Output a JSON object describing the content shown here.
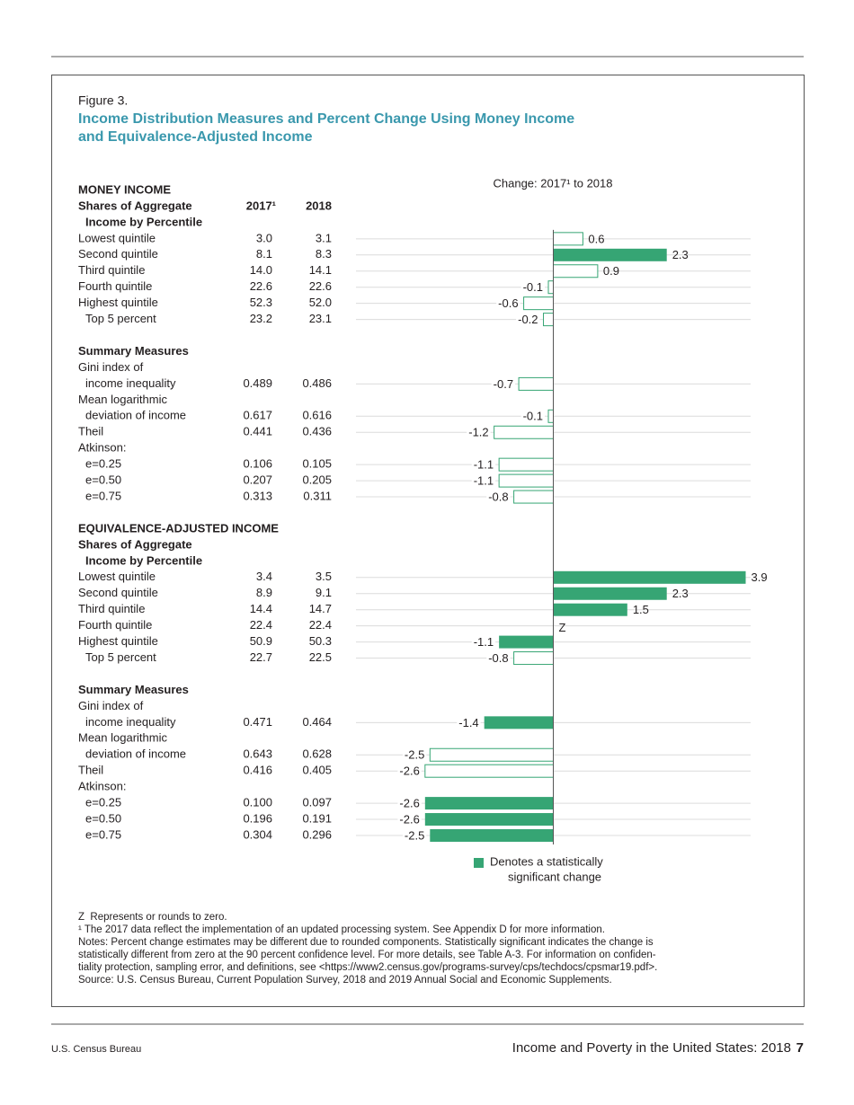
{
  "header": {
    "page_label": "Figure 3.",
    "title_lines": [
      "Income Distribution Measures and Percent Change Using Money Income",
      "and Equivalence-Adjusted Income"
    ],
    "title_color": "#3a98ad"
  },
  "table": {
    "columns": [
      "2017¹",
      "2018"
    ],
    "sections": [
      {
        "rows": [
          {
            "label": "MONEY INCOME",
            "bold": true
          },
          {
            "label": "Shares of Aggregate",
            "bold": true
          },
          {
            "label": "Income by Percentile",
            "bold": true,
            "indent": true
          },
          {
            "label": "Lowest quintile",
            "cells": [
              "3.0",
              "3.1"
            ]
          },
          {
            "label": "Second quintile",
            "cells": [
              "8.1",
              "8.3"
            ]
          },
          {
            "label": "Third quintile",
            "cells": [
              "14.0",
              "14.1"
            ]
          },
          {
            "label": "Fourth quintile",
            "cells": [
              "22.6",
              "22.6"
            ]
          },
          {
            "label": "Highest quintile",
            "cells": [
              "52.3",
              "52.0"
            ]
          },
          {
            "label": "Top 5 percent",
            "indent": true,
            "cells": [
              "23.2",
              "23.1"
            ]
          }
        ]
      },
      {
        "rows": [
          {
            "label": "Summary Measures",
            "bold": true
          },
          {
            "label": "Gini index of"
          },
          {
            "label": "income inequality",
            "indent": true,
            "cells": [
              "0.489",
              "0.486"
            ]
          },
          {
            "label": "Mean logarithmic"
          },
          {
            "label": "deviation of income",
            "indent": true,
            "cells": [
              "0.617",
              "0.616"
            ]
          },
          {
            "label": "Theil",
            "cells": [
              "0.441",
              "0.436"
            ]
          },
          {
            "label": "Atkinson:"
          },
          {
            "label": "e=0.25",
            "indent": true,
            "cells": [
              "0.106",
              "0.105"
            ]
          },
          {
            "label": "e=0.50",
            "indent": true,
            "cells": [
              "0.207",
              "0.205"
            ]
          },
          {
            "label": "e=0.75",
            "indent": true,
            "cells": [
              "0.313",
              "0.311"
            ]
          }
        ]
      },
      {
        "rows": [
          {
            "label": "EQUIVALENCE-ADJUSTED INCOME",
            "bold": true
          },
          {
            "label": "Shares of Aggregate",
            "bold": true
          },
          {
            "label": "Income by Percentile",
            "bold": true,
            "indent": true
          },
          {
            "label": "Lowest quintile",
            "cells": [
              "3.4",
              "3.5"
            ]
          },
          {
            "label": "Second quintile",
            "cells": [
              "8.9",
              "9.1"
            ]
          },
          {
            "label": "Third quintile",
            "cells": [
              "14.4",
              "14.7"
            ]
          },
          {
            "label": "Fourth quintile",
            "cells": [
              "22.4",
              "22.4"
            ]
          },
          {
            "label": "Highest quintile",
            "cells": [
              "50.9",
              "50.3"
            ]
          },
          {
            "label": "Top 5 percent",
            "indent": true,
            "cells": [
              "22.7",
              "22.5"
            ]
          }
        ]
      },
      {
        "rows": [
          {
            "label": "Summary Measures",
            "bold": true
          },
          {
            "label": "Gini index of"
          },
          {
            "label": "income inequality",
            "indent": true,
            "cells": [
              "0.471",
              "0.464"
            ]
          },
          {
            "label": "Mean logarithmic"
          },
          {
            "label": "deviation of income",
            "indent": true,
            "cells": [
              "0.643",
              "0.628"
            ]
          },
          {
            "label": "Theil",
            "cells": [
              "0.416",
              "0.405"
            ]
          },
          {
            "label": "Atkinson:"
          },
          {
            "label": "e=0.25",
            "indent": true,
            "cells": [
              "0.100",
              "0.097"
            ]
          },
          {
            "label": "e=0.50",
            "indent": true,
            "cells": [
              "0.196",
              "0.191"
            ]
          },
          {
            "label": "e=0.75",
            "indent": true,
            "cells": [
              "0.304",
              "0.296"
            ]
          }
        ]
      }
    ]
  },
  "chart_data": {
    "type": "bar",
    "orientation": "horizontal",
    "title": "Change: 2017¹ to 2018",
    "values": [
      0.6,
      2.3,
      0.9,
      -0.1,
      -0.6,
      -0.2,
      -0.7,
      -0.1,
      -1.2,
      -1.1,
      -1.1,
      -0.8,
      3.9,
      2.3,
      1.5,
      0,
      -1.1,
      -0.8,
      -1.4,
      -2.5,
      -2.6,
      -2.6,
      -2.6,
      -2.5
    ],
    "value_labels": [
      "0.6",
      "2.3",
      "0.9",
      "-0.1",
      "-0.6",
      "-0.2",
      "-0.7",
      "-0.1",
      "-1.2",
      "-1.1",
      "-1.1",
      "-0.8",
      "3.9",
      "2.3",
      "1.5",
      "Z",
      "-1.1",
      "-0.8",
      "-1.4",
      "-2.5",
      "-2.6",
      "-2.6",
      "-2.6",
      "-2.5"
    ],
    "significant": [
      false,
      true,
      false,
      false,
      false,
      false,
      false,
      false,
      false,
      false,
      false,
      false,
      true,
      true,
      true,
      false,
      true,
      false,
      true,
      false,
      false,
      true,
      true,
      true
    ],
    "xlim": [
      -4,
      4
    ],
    "color": "#36a574",
    "legend_lines": [
      "Denotes a statistically",
      "significant change"
    ]
  },
  "notes": [
    "Z  Represents or rounds to zero.",
    "¹ The 2017 data reflect the implementation of an updated processing system. See Appendix D for more information.",
    "Notes: Percent change estimates may be different due to rounded components. Statistically significant indicates the change is",
    "statistically different from zero at the 90 percent confidence level. For more details, see Table A-3. For information on confiden-",
    "tiality protection, sampling error, and definitions, see <https://www2.census.gov/programs-survey/cps/techdocs/cpsmar19.pdf>.",
    "Source: U.S. Census Bureau, Current Population Survey, 2018 and 2019 Annual Social and Economic Supplements."
  ],
  "footer": {
    "left": "U.S. Census Bureau",
    "right": "Income and Poverty in the United States: 2018",
    "page": "7"
  }
}
